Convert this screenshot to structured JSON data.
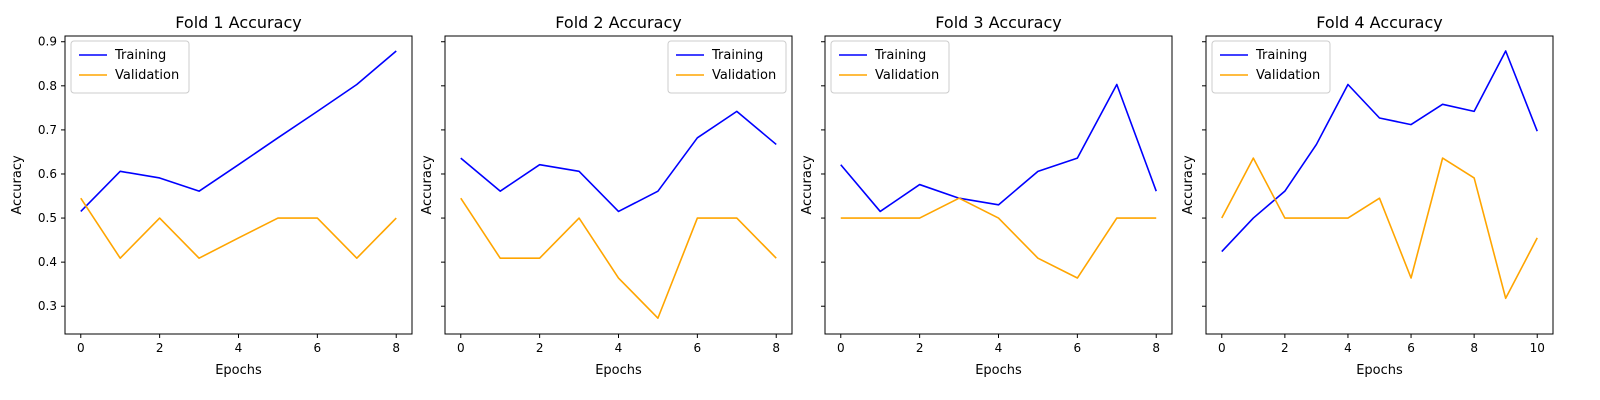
{
  "colors": {
    "training": "#0000ff",
    "validation": "#ffa500",
    "axes": "#000000",
    "background": "#ffffff"
  },
  "chart_data": [
    {
      "type": "line",
      "title": "Fold 1 Accuracy",
      "xlabel": "Epochs",
      "ylabel": "Accuracy",
      "xlim": [
        -0.4,
        8.4
      ],
      "ylim": [
        0.237,
        0.913
      ],
      "xticks": [
        "0",
        "2",
        "4",
        "6",
        "8"
      ],
      "yticks": [
        "0.3",
        "0.4",
        "0.5",
        "0.6",
        "0.7",
        "0.8",
        "0.9"
      ],
      "show_ytick_labels": true,
      "grid": false,
      "legend": "upper left",
      "series": [
        {
          "name": "Training",
          "color": "#0000ff",
          "x": [
            0,
            1,
            2,
            3,
            4,
            5,
            6,
            7,
            8
          ],
          "values": [
            0.515,
            0.606,
            0.591,
            0.561,
            0.621,
            0.682,
            0.742,
            0.803,
            0.879
          ]
        },
        {
          "name": "Validation",
          "color": "#ffa500",
          "x": [
            0,
            1,
            2,
            3,
            4,
            5,
            6,
            7,
            8
          ],
          "values": [
            0.545,
            0.409,
            0.5,
            0.409,
            0.455,
            0.5,
            0.5,
            0.409,
            0.5
          ]
        }
      ]
    },
    {
      "type": "line",
      "title": "Fold 2 Accuracy",
      "xlabel": "Epochs",
      "ylabel": "Accuracy",
      "xlim": [
        -0.4,
        8.4
      ],
      "ylim": [
        0.237,
        0.913
      ],
      "xticks": [
        "0",
        "2",
        "4",
        "6",
        "8"
      ],
      "yticks": [
        "0.3",
        "0.4",
        "0.5",
        "0.6",
        "0.7",
        "0.8",
        "0.9"
      ],
      "show_ytick_labels": false,
      "grid": false,
      "legend": "upper right",
      "series": [
        {
          "name": "Training",
          "color": "#0000ff",
          "x": [
            0,
            1,
            2,
            3,
            4,
            5,
            6,
            7,
            8
          ],
          "values": [
            0.636,
            0.561,
            0.621,
            0.606,
            0.515,
            0.561,
            0.682,
            0.742,
            0.667
          ]
        },
        {
          "name": "Validation",
          "color": "#ffa500",
          "x": [
            0,
            1,
            2,
            3,
            4,
            5,
            6,
            7,
            8
          ],
          "values": [
            0.545,
            0.409,
            0.409,
            0.5,
            0.364,
            0.273,
            0.5,
            0.5,
            0.409
          ]
        }
      ]
    },
    {
      "type": "line",
      "title": "Fold 3 Accuracy",
      "xlabel": "Epochs",
      "ylabel": "Accuracy",
      "xlim": [
        -0.4,
        8.4
      ],
      "ylim": [
        0.237,
        0.913
      ],
      "xticks": [
        "0",
        "2",
        "4",
        "6",
        "8"
      ],
      "yticks": [
        "0.3",
        "0.4",
        "0.5",
        "0.6",
        "0.7",
        "0.8",
        "0.9"
      ],
      "show_ytick_labels": false,
      "grid": false,
      "legend": "upper left",
      "series": [
        {
          "name": "Training",
          "color": "#0000ff",
          "x": [
            0,
            1,
            2,
            3,
            4,
            5,
            6,
            7,
            8
          ],
          "values": [
            0.621,
            0.515,
            0.576,
            0.545,
            0.53,
            0.606,
            0.636,
            0.803,
            0.561
          ]
        },
        {
          "name": "Validation",
          "color": "#ffa500",
          "x": [
            0,
            1,
            2,
            3,
            4,
            5,
            6,
            7,
            8
          ],
          "values": [
            0.5,
            0.5,
            0.5,
            0.545,
            0.5,
            0.409,
            0.364,
            0.5,
            0.5
          ]
        }
      ]
    },
    {
      "type": "line",
      "title": "Fold 4 Accuracy",
      "xlabel": "Epochs",
      "ylabel": "Accuracy",
      "xlim": [
        -0.5,
        10.5
      ],
      "ylim": [
        0.237,
        0.913
      ],
      "xticks": [
        "0",
        "2",
        "4",
        "6",
        "8",
        "10"
      ],
      "yticks": [
        "0.3",
        "0.4",
        "0.5",
        "0.6",
        "0.7",
        "0.8",
        "0.9"
      ],
      "show_ytick_labels": false,
      "grid": false,
      "legend": "upper left",
      "series": [
        {
          "name": "Training",
          "color": "#0000ff",
          "x": [
            0,
            1,
            2,
            3,
            4,
            5,
            6,
            7,
            8,
            9,
            10
          ],
          "values": [
            0.424,
            0.5,
            0.561,
            0.667,
            0.803,
            0.727,
            0.712,
            0.758,
            0.742,
            0.879,
            0.697
          ]
        },
        {
          "name": "Validation",
          "color": "#ffa500",
          "x": [
            0,
            1,
            2,
            3,
            4,
            5,
            6,
            7,
            8,
            9,
            10
          ],
          "values": [
            0.5,
            0.636,
            0.5,
            0.5,
            0.5,
            0.545,
            0.364,
            0.636,
            0.591,
            0.318,
            0.455
          ]
        }
      ]
    }
  ]
}
